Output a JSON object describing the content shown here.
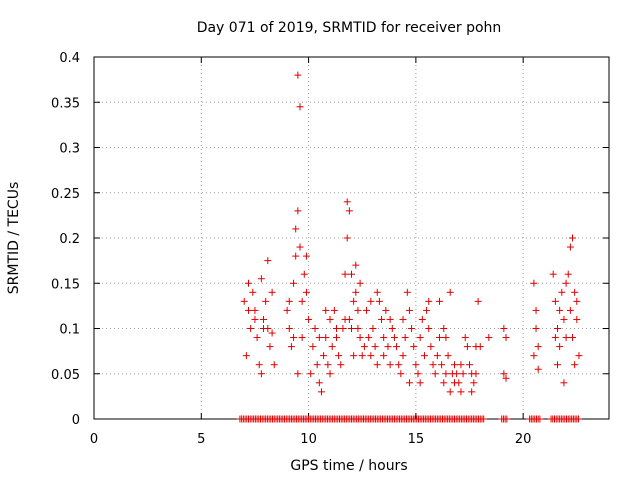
{
  "chart_data": {
    "type": "scatter",
    "title": "Day 071 of 2019, SRMTID for receiver pohn",
    "xlabel": "GPS time / hours",
    "ylabel": "SRMTID / TECUs",
    "xlim": [
      0,
      24
    ],
    "ylim": [
      0,
      0.4
    ],
    "xticks": [
      0,
      5,
      10,
      15,
      20
    ],
    "xtick_labels": [
      "0",
      "5",
      "10",
      "15",
      "20"
    ],
    "yticks": [
      0,
      0.05,
      0.1,
      0.15,
      0.2,
      0.25,
      0.3,
      0.35,
      0.4
    ],
    "ytick_labels": [
      "0",
      "0.05",
      "0.1",
      "0.15",
      "0.2",
      "0.25",
      "0.3",
      "0.35",
      "0.4"
    ],
    "grid": true,
    "marker": "plus",
    "color": "#e00000",
    "series": [
      {
        "name": "SRMTID",
        "points": [
          [
            7.0,
            0.13
          ],
          [
            7.1,
            0.07
          ],
          [
            7.2,
            0.15
          ],
          [
            7.3,
            0.1
          ],
          [
            7.4,
            0.14
          ],
          [
            7.5,
            0.12
          ],
          [
            7.6,
            0.09
          ],
          [
            7.7,
            0.06
          ],
          [
            7.8,
            0.05
          ],
          [
            7.9,
            0.11
          ],
          [
            8.0,
            0.13
          ],
          [
            8.1,
            0.1
          ],
          [
            8.2,
            0.08
          ],
          [
            8.3,
            0.14
          ],
          [
            8.4,
            0.06
          ],
          [
            7.2,
            0.12
          ],
          [
            7.5,
            0.11
          ],
          [
            7.8,
            0.155
          ],
          [
            8.1,
            0.175
          ],
          [
            7.9,
            0.1
          ],
          [
            8.3,
            0.095
          ],
          [
            9.0,
            0.12
          ],
          [
            9.1,
            0.1
          ],
          [
            9.2,
            0.08
          ],
          [
            9.3,
            0.15
          ],
          [
            9.4,
            0.21
          ],
          [
            9.5,
            0.23
          ],
          [
            9.6,
            0.19
          ],
          [
            9.7,
            0.13
          ],
          [
            9.5,
            0.38
          ],
          [
            9.6,
            0.345
          ],
          [
            9.8,
            0.16
          ],
          [
            9.9,
            0.18
          ],
          [
            10.0,
            0.11
          ],
          [
            10.1,
            0.05
          ],
          [
            10.2,
            0.08
          ],
          [
            9.3,
            0.09
          ],
          [
            9.4,
            0.18
          ],
          [
            9.5,
            0.05
          ],
          [
            9.7,
            0.09
          ],
          [
            9.9,
            0.14
          ],
          [
            9.1,
            0.13
          ],
          [
            10.3,
            0.1
          ],
          [
            10.4,
            0.06
          ],
          [
            10.5,
            0.04
          ],
          [
            10.6,
            0.03
          ],
          [
            10.7,
            0.07
          ],
          [
            10.8,
            0.09
          ],
          [
            10.9,
            0.06
          ],
          [
            11.0,
            0.05
          ],
          [
            11.1,
            0.08
          ],
          [
            11.2,
            0.12
          ],
          [
            11.3,
            0.1
          ],
          [
            11.4,
            0.07
          ],
          [
            11.5,
            0.06
          ],
          [
            10.5,
            0.09
          ],
          [
            10.8,
            0.12
          ],
          [
            11.0,
            0.11
          ],
          [
            11.3,
            0.09
          ],
          [
            11.6,
            0.1
          ],
          [
            11.7,
            0.11
          ],
          [
            11.8,
            0.24
          ],
          [
            11.9,
            0.23
          ],
          [
            11.8,
            0.2
          ],
          [
            12.0,
            0.16
          ],
          [
            12.1,
            0.13
          ],
          [
            12.2,
            0.14
          ],
          [
            12.3,
            0.12
          ],
          [
            12.4,
            0.09
          ],
          [
            12.5,
            0.07
          ],
          [
            11.7,
            0.16
          ],
          [
            12.0,
            0.1
          ],
          [
            12.2,
            0.17
          ],
          [
            12.3,
            0.1
          ],
          [
            11.9,
            0.11
          ],
          [
            12.1,
            0.07
          ],
          [
            12.4,
            0.15
          ],
          [
            12.6,
            0.08
          ],
          [
            12.7,
            0.12
          ],
          [
            12.8,
            0.09
          ],
          [
            12.9,
            0.07
          ],
          [
            13.0,
            0.1
          ],
          [
            13.1,
            0.08
          ],
          [
            13.2,
            0.14
          ],
          [
            13.3,
            0.13
          ],
          [
            13.4,
            0.11
          ],
          [
            13.5,
            0.09
          ],
          [
            13.6,
            0.12
          ],
          [
            13.7,
            0.08
          ],
          [
            13.8,
            0.06
          ],
          [
            13.9,
            0.1
          ],
          [
            14.0,
            0.09
          ],
          [
            13.2,
            0.06
          ],
          [
            12.9,
            0.13
          ],
          [
            13.5,
            0.07
          ],
          [
            13.8,
            0.11
          ],
          [
            14.1,
            0.08
          ],
          [
            14.2,
            0.06
          ],
          [
            14.3,
            0.05
          ],
          [
            14.4,
            0.07
          ],
          [
            14.5,
            0.09
          ],
          [
            14.6,
            0.14
          ],
          [
            14.7,
            0.12
          ],
          [
            14.8,
            0.1
          ],
          [
            14.9,
            0.08
          ],
          [
            15.0,
            0.06
          ],
          [
            15.1,
            0.05
          ],
          [
            15.2,
            0.09
          ],
          [
            15.3,
            0.11
          ],
          [
            15.4,
            0.07
          ],
          [
            15.5,
            0.12
          ],
          [
            15.6,
            0.1
          ],
          [
            15.7,
            0.08
          ],
          [
            15.8,
            0.06
          ],
          [
            15.9,
            0.05
          ],
          [
            14.7,
            0.04
          ],
          [
            15.2,
            0.04
          ],
          [
            14.4,
            0.11
          ],
          [
            15.6,
            0.13
          ],
          [
            16.0,
            0.07
          ],
          [
            16.1,
            0.09
          ],
          [
            16.2,
            0.06
          ],
          [
            16.3,
            0.04
          ],
          [
            16.4,
            0.05
          ],
          [
            16.5,
            0.07
          ],
          [
            16.6,
            0.03
          ],
          [
            16.7,
            0.05
          ],
          [
            16.8,
            0.06
          ],
          [
            16.9,
            0.05
          ],
          [
            17.0,
            0.04
          ],
          [
            17.1,
            0.06
          ],
          [
            17.2,
            0.05
          ],
          [
            17.3,
            0.09
          ],
          [
            17.4,
            0.08
          ],
          [
            16.1,
            0.13
          ],
          [
            16.4,
            0.09
          ],
          [
            16.8,
            0.04
          ],
          [
            17.1,
            0.03
          ],
          [
            16.6,
            0.14
          ],
          [
            16.3,
            0.1
          ],
          [
            17.5,
            0.06
          ],
          [
            17.6,
            0.05
          ],
          [
            17.7,
            0.04
          ],
          [
            17.8,
            0.08
          ],
          [
            17.9,
            0.13
          ],
          [
            18.0,
            0.08
          ],
          [
            18.4,
            0.09
          ],
          [
            17.6,
            0.03
          ],
          [
            17.8,
            0.05
          ],
          [
            19.1,
            0.1
          ],
          [
            19.2,
            0.09
          ],
          [
            19.1,
            0.05
          ],
          [
            19.2,
            0.045
          ],
          [
            20.5,
            0.15
          ],
          [
            20.6,
            0.12
          ],
          [
            20.7,
            0.08
          ],
          [
            20.6,
            0.1
          ],
          [
            20.5,
            0.07
          ],
          [
            20.7,
            0.055
          ],
          [
            21.4,
            0.16
          ],
          [
            21.5,
            0.13
          ],
          [
            21.6,
            0.1
          ],
          [
            21.7,
            0.12
          ],
          [
            21.8,
            0.14
          ],
          [
            21.9,
            0.11
          ],
          [
            22.0,
            0.09
          ],
          [
            22.1,
            0.16
          ],
          [
            22.2,
            0.19
          ],
          [
            22.3,
            0.2
          ],
          [
            22.4,
            0.14
          ],
          [
            22.5,
            0.11
          ],
          [
            22.6,
            0.07
          ],
          [
            21.6,
            0.06
          ],
          [
            21.9,
            0.04
          ],
          [
            22.2,
            0.12
          ],
          [
            22.4,
            0.06
          ],
          [
            22.5,
            0.13
          ],
          [
            21.5,
            0.09
          ],
          [
            22.0,
            0.15
          ],
          [
            22.3,
            0.09
          ],
          [
            21.7,
            0.08
          ]
        ]
      }
    ],
    "zero_spans": [
      [
        6.8,
        18.2
      ],
      [
        19.0,
        19.3
      ],
      [
        20.3,
        20.8
      ],
      [
        21.3,
        22.6
      ]
    ]
  }
}
